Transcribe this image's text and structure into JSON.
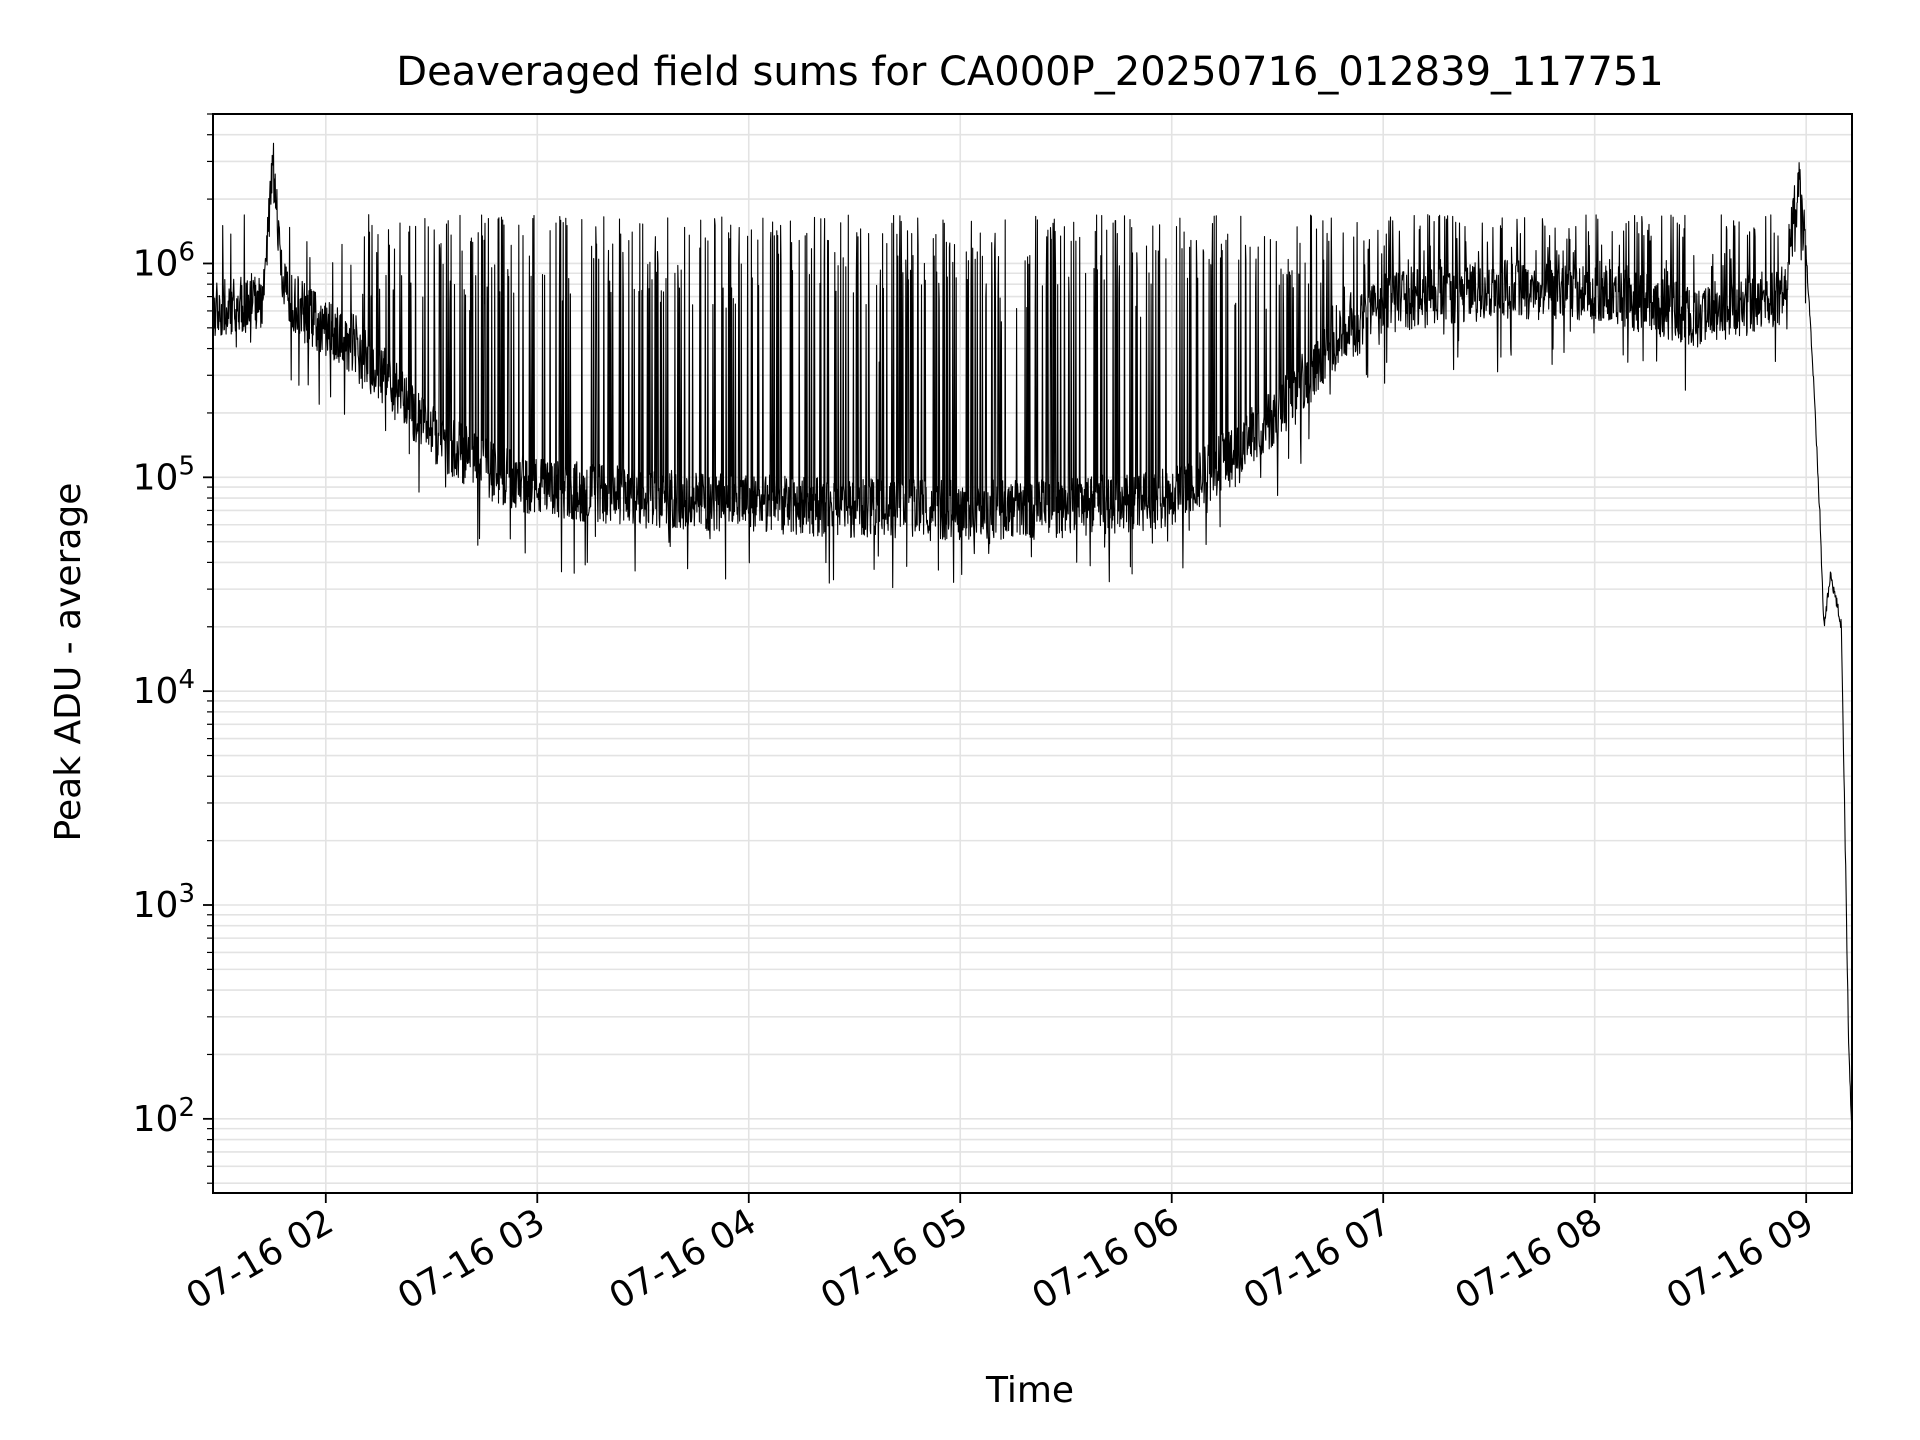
{
  "chart_data": {
    "type": "line",
    "title": "Deaveraged field sums for CA000P_20250716_012839_117751",
    "xlabel": "Time",
    "ylabel": "Peak ADU - average",
    "x_scale": "time",
    "y_scale": "log",
    "xlim": [
      "2025-07-16 01:28",
      "2025-07-16 09:13"
    ],
    "ylim": [
      45,
      5000000
    ],
    "x_ticks": [
      "2025-07-16 02:00",
      "2025-07-16 03:00",
      "2025-07-16 04:00",
      "2025-07-16 05:00",
      "2025-07-16 06:00",
      "2025-07-16 07:00",
      "2025-07-16 08:00",
      "2025-07-16 09:00"
    ],
    "x_tick_labels": [
      "07-16 02",
      "07-16 03",
      "07-16 04",
      "07-16 05",
      "07-16 06",
      "07-16 07",
      "07-16 08",
      "07-16 09"
    ],
    "y_tick_bases": [
      "10",
      "10",
      "10",
      "10",
      "10"
    ],
    "y_tick_exponents": [
      "2",
      "3",
      "4",
      "5",
      "6"
    ],
    "y_ticks": [
      100,
      1000,
      10000,
      100000,
      1000000
    ],
    "grid": true,
    "legend": "none",
    "series": [
      {
        "color": "#000000",
        "points": [
          [
            "2025-07-16 01:28",
            600000
          ],
          [
            "2025-07-16 01:35",
            620000
          ],
          [
            "2025-07-16 01:42",
            680000
          ],
          [
            "2025-07-16 01:45",
            3000000
          ],
          [
            "2025-07-16 01:48",
            750000
          ],
          [
            "2025-07-16 01:55",
            560000
          ],
          [
            "2025-07-16 02:00",
            500000
          ],
          [
            "2025-07-16 02:10",
            400000
          ],
          [
            "2025-07-16 02:20",
            250000
          ],
          [
            "2025-07-16 02:30",
            160000
          ],
          [
            "2025-07-16 02:45",
            110000
          ],
          [
            "2025-07-16 03:00",
            90000
          ],
          [
            "2025-07-16 03:30",
            80000
          ],
          [
            "2025-07-16 04:00",
            75000
          ],
          [
            "2025-07-16 04:30",
            72000
          ],
          [
            "2025-07-16 05:00",
            70000
          ],
          [
            "2025-07-16 05:30",
            72000
          ],
          [
            "2025-07-16 06:00",
            80000
          ],
          [
            "2025-07-16 06:15",
            120000
          ],
          [
            "2025-07-16 06:30",
            200000
          ],
          [
            "2025-07-16 06:45",
            400000
          ],
          [
            "2025-07-16 07:00",
            650000
          ],
          [
            "2025-07-16 07:30",
            750000
          ],
          [
            "2025-07-16 08:00",
            750000
          ],
          [
            "2025-07-16 08:30",
            550000
          ],
          [
            "2025-07-16 08:53",
            700000
          ],
          [
            "2025-07-16 08:58",
            2300000
          ],
          [
            "2025-07-16 09:00",
            1100000
          ],
          [
            "2025-07-16 09:01",
            600000
          ],
          [
            "2025-07-16 09:02",
            300000
          ],
          [
            "2025-07-16 09:04",
            60000
          ],
          [
            "2025-07-16 09:05",
            20000
          ],
          [
            "2025-07-16 09:07",
            35000
          ],
          [
            "2025-07-16 09:10",
            20000
          ],
          [
            "2025-07-16 09:12",
            250
          ],
          [
            "2025-07-16 09:13",
            80
          ]
        ]
      }
    ]
  }
}
